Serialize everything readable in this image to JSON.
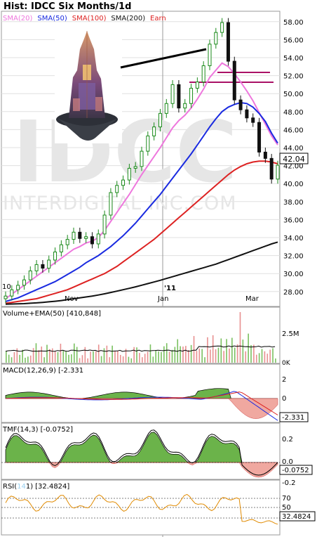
{
  "header": {
    "title": "Hist: IDCC Six Months/1d",
    "legend": [
      {
        "label": "SMA(20)",
        "color": "#ee77dd"
      },
      {
        "label": "SMA(50)",
        "color": "#1a2be0"
      },
      {
        "label": "SMA(100)",
        "color": "#dd2222"
      },
      {
        "label": "SMA(200)",
        "color": "#111111"
      },
      {
        "label": "Earn",
        "color": "#dd2222"
      }
    ]
  },
  "watermark": {
    "ticker": "IDCC",
    "company": "INTERDIGITAL INC.COM"
  },
  "price_axis": {
    "ticks": [
      "58.00",
      "56.00",
      "54.00",
      "52.00",
      "50.00",
      "48.00",
      "46.00",
      "44.00",
      "42.00",
      "40.00",
      "38.00",
      "36.00",
      "34.00",
      "32.00",
      "30.00",
      "28.00"
    ]
  },
  "last_price": "42.04",
  "date_axis": {
    "labels": [
      "Nov",
      "Jan",
      "'11",
      "Mar"
    ],
    "edge_label": "10"
  },
  "volume_panel": {
    "title": "Volume+EMA(50)",
    "value": "[410,848]",
    "ticks": [
      "2.5M"
    ],
    "edge_tick": "0K"
  },
  "macd_panel": {
    "title": "MACD(12,26,9)",
    "value": "[-2.331",
    "ticks": [
      "2",
      "0",
      "-2"
    ],
    "last": "-2.331"
  },
  "tmf_panel": {
    "title": "TMF(14,3)",
    "value": "[-0.0752]",
    "ticks": [
      "0.2",
      "0.0",
      "-0.2"
    ],
    "last": "-0.0752"
  },
  "rsi_panel": {
    "title_a": "RSI(",
    "title_b": "1)",
    "value": "[32.4824]",
    "ticks": [
      "70",
      "50",
      "30"
    ],
    "last": "32.4824"
  },
  "chart_data": {
    "type": "candlestick",
    "title": "Hist: IDCC Six Months/1d",
    "ylim": [
      26.5,
      59
    ],
    "x_labels": [
      "Nov",
      "Jan",
      "Mar"
    ],
    "series": [
      {
        "name": "Close",
        "values": [
          27.5,
          28.2,
          28.7,
          29.3,
          30.3,
          31.0,
          30.6,
          31.5,
          32.4,
          33.2,
          33.8,
          34.6,
          33.9,
          34.1,
          33.3,
          34.4,
          36.5,
          39.0,
          39.8,
          40.4,
          41.7,
          41.9,
          43.6,
          45.3,
          46.3,
          47.8,
          48.9,
          51.0,
          48.4,
          48.9,
          50.6,
          51.3,
          53.1,
          55.5,
          56.8,
          57.9,
          53.6,
          49.3,
          48.2,
          47.3,
          46.8,
          43.5,
          42.8,
          40.5,
          42.04
        ]
      },
      {
        "name": "SMA(20)",
        "values": [
          27.2,
          27.7,
          28.2,
          28.7,
          29.2,
          29.7,
          30.2,
          30.7,
          31.2,
          31.7,
          32.2,
          32.7,
          33.0,
          33.4,
          33.6,
          34.0,
          34.8,
          35.8,
          36.8,
          37.8,
          38.8,
          39.9,
          41.0,
          42.0,
          43.0,
          44.0,
          45.1,
          46.2,
          47.0,
          47.6,
          48.4,
          49.4,
          50.5,
          51.8,
          52.6,
          53.4,
          53.0,
          52.2,
          51.3,
          50.3,
          49.2,
          47.9,
          46.6,
          45.3,
          44.3
        ]
      },
      {
        "name": "SMA(50)",
        "values": [
          26.9,
          27.1,
          27.3,
          27.6,
          27.9,
          28.2,
          28.5,
          28.8,
          29.1,
          29.5,
          29.9,
          30.3,
          30.7,
          31.2,
          31.6,
          32.0,
          32.5,
          33.0,
          33.6,
          34.2,
          34.9,
          35.6,
          36.4,
          37.2,
          38.0,
          38.8,
          39.7,
          40.6,
          41.5,
          42.4,
          43.3,
          44.3,
          45.3,
          46.3,
          47.2,
          48.0,
          48.5,
          48.8,
          49.0,
          48.9,
          48.5,
          47.8,
          46.9,
          45.6,
          44.5
        ]
      },
      {
        "name": "SMA(100)",
        "values": [
          26.7,
          26.8,
          26.9,
          27.0,
          27.1,
          27.2,
          27.4,
          27.6,
          27.8,
          28.0,
          28.2,
          28.5,
          28.8,
          29.1,
          29.4,
          29.7,
          30.0,
          30.4,
          30.8,
          31.3,
          31.8,
          32.3,
          32.8,
          33.3,
          33.8,
          34.4,
          35.0,
          35.6,
          36.2,
          36.8,
          37.4,
          38.0,
          38.6,
          39.2,
          39.8,
          40.4,
          41.0,
          41.5,
          41.9,
          42.2,
          42.4,
          42.5,
          42.5,
          42.4,
          42.2
        ]
      },
      {
        "name": "SMA(200)",
        "values": [
          26.6,
          26.62,
          26.64,
          26.66,
          26.7,
          26.74,
          26.8,
          26.86,
          26.92,
          27.0,
          27.1,
          27.2,
          27.3,
          27.4,
          27.5,
          27.62,
          27.75,
          27.9,
          28.05,
          28.2,
          28.36,
          28.52,
          28.7,
          28.88,
          29.06,
          29.25,
          29.45,
          29.65,
          29.85,
          30.05,
          30.25,
          30.45,
          30.65,
          30.85,
          31.05,
          31.3,
          31.55,
          31.8,
          32.05,
          32.3,
          32.55,
          32.8,
          33.05,
          33.3,
          33.5
        ]
      }
    ],
    "annotations": [
      {
        "type": "horizontal-line",
        "value": 52.0
      },
      {
        "type": "horizontal-line",
        "value": 51.0
      },
      {
        "type": "trend-line",
        "from": 55.0,
        "to": 57.0
      }
    ]
  }
}
